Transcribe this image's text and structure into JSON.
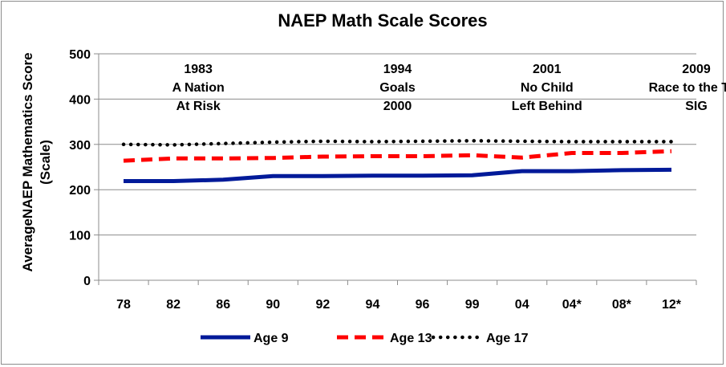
{
  "chart_data": {
    "type": "line",
    "title": "NAEP Math Scale Scores",
    "xlabel": "",
    "ylabel_line1": "AverageNAEP Mathematics Score",
    "ylabel_line2": "(Scale)",
    "ylim": [
      0,
      500
    ],
    "yticks": [
      "0",
      "100",
      "200",
      "300",
      "400",
      "500"
    ],
    "categories": [
      "78",
      "82",
      "86",
      "90",
      "92",
      "94",
      "96",
      "99",
      "04",
      "04*",
      "08*",
      "12*"
    ],
    "series": [
      {
        "name": "Age 9",
        "color": "#001a99",
        "style": "solid",
        "values": [
          219,
          219,
          222,
          230,
          230,
          231,
          231,
          232,
          241,
          241,
          243,
          244
        ]
      },
      {
        "name": "Age 13",
        "color": "#ff0000",
        "style": "dashed",
        "values": [
          264,
          269,
          269,
          270,
          273,
          274,
          274,
          276,
          271,
          281,
          281,
          285
        ]
      },
      {
        "name": "Age 17",
        "color": "#000000",
        "style": "dotted",
        "values": [
          300,
          299,
          302,
          305,
          307,
          306,
          307,
          308,
          307,
          306,
          306,
          306
        ]
      }
    ],
    "annotations": [
      {
        "category_index": 2.5,
        "lines": [
          "1983",
          "A Nation",
          "At Risk"
        ]
      },
      {
        "category_index": 6.5,
        "lines": [
          "1994",
          "Goals",
          "2000"
        ]
      },
      {
        "category_index": 9.5,
        "lines": [
          "2001",
          "No Child",
          "Left Behind"
        ]
      },
      {
        "category_index": 12.5,
        "lines": [
          "2009",
          "Race to the Top",
          "SIG"
        ]
      }
    ],
    "legend_position": "bottom",
    "grid": true
  }
}
